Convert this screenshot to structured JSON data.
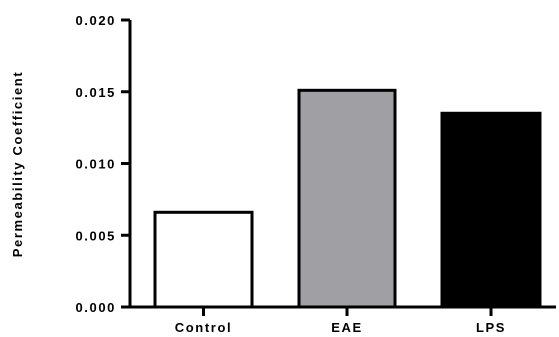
{
  "chart_data": {
    "type": "bar",
    "title": "",
    "xlabel": "",
    "ylabel": "Permeability Coefficient",
    "ylim": [
      0,
      0.02
    ],
    "yticks": [
      0.0,
      0.005,
      0.01,
      0.015,
      0.02
    ],
    "ytick_labels": [
      "0.000",
      "0.005",
      "0.010",
      "0.015",
      "0.020"
    ],
    "categories": [
      "Control",
      "EAE",
      "LPS"
    ],
    "values": [
      0.0066,
      0.0151,
      0.0135
    ],
    "colors": [
      "#ffffff",
      "#a09fa4",
      "#000000"
    ],
    "grid": false,
    "legend": "none"
  }
}
